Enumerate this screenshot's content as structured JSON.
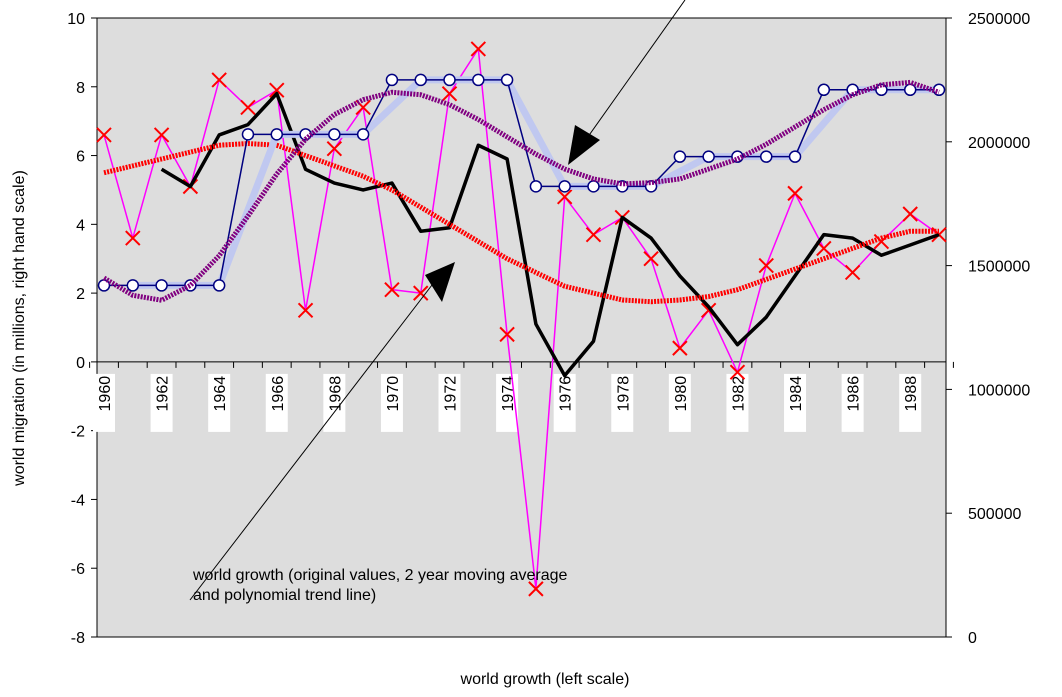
{
  "chart_data": {
    "type": "line",
    "x_label": "world growth (left scale)",
    "y_label": "world migration (in millions, right hand scale)",
    "categories": [
      1960,
      null,
      1962,
      null,
      1964,
      null,
      1966,
      null,
      1968,
      null,
      1970,
      null,
      1972,
      null,
      1974,
      null,
      1976,
      null,
      1978,
      null,
      1980,
      null,
      1982,
      null,
      1984,
      null,
      1986,
      null,
      1988,
      null
    ],
    "ylim": [
      -8,
      10
    ],
    "yticks": [
      -8,
      -6,
      -4,
      -2,
      0,
      2,
      4,
      6,
      8,
      10
    ],
    "y2lim": [
      0,
      2500000
    ],
    "y2ticks": [
      0,
      500000,
      1000000,
      1500000,
      2000000,
      2500000
    ],
    "plot_background": "#dddddd",
    "annotations": [
      {
        "text": "world growth (original values, 2 year moving average"
      },
      {
        "text": "and polynomial trend line)"
      }
    ],
    "series": [
      {
        "color": "#ff00ff",
        "marker": "x",
        "marker_color": "#ff0000",
        "width": 1.5,
        "values": [
          6.6,
          3.6,
          6.6,
          5.1,
          8.2,
          7.4,
          7.9,
          1.5,
          6.2,
          7.4,
          2.1,
          2.0,
          7.8,
          9.1,
          0.8,
          -6.6,
          4.8,
          3.7,
          4.2,
          3.0,
          0.4,
          1.5,
          -0.3,
          2.8,
          4.9,
          3.3,
          2.6,
          3.5,
          4.3,
          3.7
        ]
      },
      {
        "color": "#000000",
        "width": 3.5,
        "values": [
          null,
          null,
          5.6,
          5.1,
          6.6,
          6.9,
          7.8,
          5.6,
          5.2,
          5.0,
          5.2,
          3.8,
          3.9,
          6.3,
          5.9,
          1.1,
          -0.4,
          0.6,
          4.2,
          3.6,
          2.5,
          1.6,
          0.5,
          1.3,
          2.5,
          3.7,
          3.6,
          3.1,
          3.4,
          3.7
        ]
      },
      {
        "color": "#ff0000",
        "width": 5,
        "dash": true,
        "values": [
          5.5,
          5.7,
          5.9,
          6.1,
          6.3,
          6.35,
          6.3,
          6.0,
          5.7,
          5.4,
          5.0,
          4.5,
          4.0,
          3.5,
          3.0,
          2.6,
          2.2,
          2.0,
          1.8,
          1.75,
          1.8,
          1.9,
          2.1,
          2.4,
          2.7,
          3.0,
          3.3,
          3.6,
          3.8,
          3.8
        ]
      },
      {
        "axis": "y2",
        "color": "#c0c8f0",
        "width": 7,
        "values": [
          null,
          1420000,
          1420000,
          1420000,
          1420000,
          1725000,
          2030000,
          2030000,
          2030000,
          2030000,
          2140000,
          2250000,
          2250000,
          2250000,
          2250000,
          2035000,
          1820000,
          1820000,
          1820000,
          1820000,
          1880000,
          1940000,
          1940000,
          1940000,
          1940000,
          2075000,
          2210000,
          2210000,
          2210000,
          2210000
        ]
      },
      {
        "axis": "y2",
        "color": "#000080",
        "marker": "circle",
        "width": 1.5,
        "values": [
          1420000,
          1420000,
          1420000,
          1420000,
          1420000,
          2030000,
          2030000,
          2030000,
          2030000,
          2030000,
          2250000,
          2250000,
          2250000,
          2250000,
          2250000,
          1820000,
          1820000,
          1820000,
          1820000,
          1820000,
          1940000,
          1940000,
          1940000,
          1940000,
          1940000,
          2210000,
          2210000,
          2210000,
          2210000,
          2210000
        ]
      },
      {
        "axis": "y2",
        "color": "#800080",
        "width": 5,
        "dash": true,
        "values": [
          1450000,
          1380000,
          1360000,
          1420000,
          1540000,
          1700000,
          1870000,
          2010000,
          2110000,
          2170000,
          2200000,
          2190000,
          2150000,
          2090000,
          2020000,
          1950000,
          1890000,
          1850000,
          1830000,
          1835000,
          1850000,
          1890000,
          1930000,
          1990000,
          2060000,
          2130000,
          2190000,
          2230000,
          2240000,
          2200000
        ]
      }
    ]
  }
}
